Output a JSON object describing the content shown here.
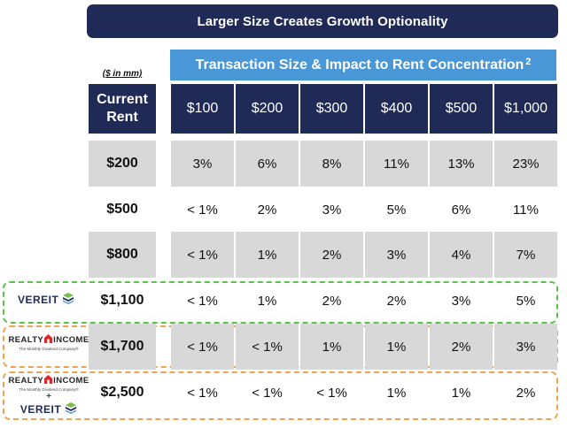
{
  "title": "Larger Size Creates Growth Optionality",
  "subtitle": {
    "text": "Transaction Size & Impact to Rent Concentration",
    "footnote": "2"
  },
  "units_label": "($ in mm)",
  "row_header": {
    "line1": "Current",
    "line2": "Rent"
  },
  "columns": [
    "$100",
    "$200",
    "$300",
    "$400",
    "$500",
    "$1,000"
  ],
  "rows": [
    {
      "rent": "$200",
      "values": [
        "3%",
        "6%",
        "8%",
        "11%",
        "13%",
        "23%"
      ]
    },
    {
      "rent": "$500",
      "values": [
        "< 1%",
        "2%",
        "3%",
        "5%",
        "6%",
        "11%"
      ]
    },
    {
      "rent": "$800",
      "values": [
        "< 1%",
        "1%",
        "2%",
        "3%",
        "4%",
        "7%"
      ]
    },
    {
      "rent": "$1,100",
      "values": [
        "< 1%",
        "1%",
        "2%",
        "2%",
        "3%",
        "5%"
      ]
    },
    {
      "rent": "$1,700",
      "values": [
        "< 1%",
        "< 1%",
        "1%",
        "1%",
        "2%",
        "3%"
      ]
    },
    {
      "rent": "$2,500",
      "values": [
        "< 1%",
        "< 1%",
        "< 1%",
        "1%",
        "1%",
        "2%"
      ]
    }
  ],
  "logos": {
    "vereit": "VEREIT",
    "realty_income_left": "REALTY",
    "realty_income_right": "INCOME",
    "realty_income_tagline": "The Monthly Dividend Company®",
    "plus": "+"
  },
  "colors": {
    "navy": "#202a57",
    "blue": "#4a97d8",
    "gray": "#d8d8d8",
    "green_dash": "#59c249",
    "orange_dash": "#f0a24e",
    "ri_red": "#d6282f",
    "vereit_green": "#7bbf4a",
    "vereit_blue": "#1d2b5a"
  },
  "icons": [
    "vereit-stack-icon",
    "realty-income-house-icon"
  ]
}
